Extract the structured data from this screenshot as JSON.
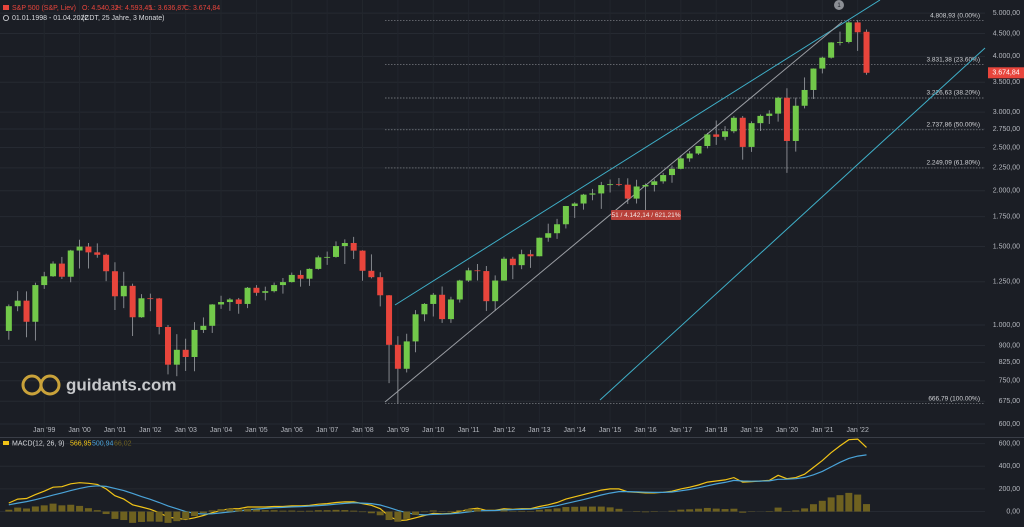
{
  "chart_data": [
    {
      "type": "candlestick",
      "title": "S&P 500 (S&P, Liev)",
      "ohlc_labels": [
        "O: 4.540,32",
        "H: 4.593,45",
        "L: 3.636,87",
        "C: 3.674,84"
      ],
      "subtitle": "01.01.1998 - 01.04.2022",
      "period_note": "(CDT, 25 Jahre, 3 Monate)",
      "watermark": "guidants.com",
      "marker": "1",
      "annotation": "51 / 4.142,14 / 621,21%",
      "up_color": "#72c94a",
      "down_color": "#e8453c",
      "log_scale": true,
      "grid": true,
      "xlim": [
        -1,
        110.4
      ],
      "ylim": [
        567,
        5350
      ],
      "xticks": [
        {
          "value": 4,
          "label": "Jan '99"
        },
        {
          "value": 8,
          "label": "Jan '00"
        },
        {
          "value": 12,
          "label": "Jan '01"
        },
        {
          "value": 16,
          "label": "Jan '02"
        },
        {
          "value": 20,
          "label": "Jan '03"
        },
        {
          "value": 24,
          "label": "Jan '04"
        },
        {
          "value": 28,
          "label": "Jan '05"
        },
        {
          "value": 32,
          "label": "Jan '06"
        },
        {
          "value": 36,
          "label": "Jan '07"
        },
        {
          "value": 40,
          "label": "Jan '08"
        },
        {
          "value": 44,
          "label": "Jan '09"
        },
        {
          "value": 48,
          "label": "Jan '10"
        },
        {
          "value": 52,
          "label": "Jan '11"
        },
        {
          "value": 56,
          "label": "Jan '12"
        },
        {
          "value": 60,
          "label": "Jan '13"
        },
        {
          "value": 64,
          "label": "Jan '14"
        },
        {
          "value": 68,
          "label": "Jan '15"
        },
        {
          "value": 72,
          "label": "Jan '16"
        },
        {
          "value": 76,
          "label": "Jan '17"
        },
        {
          "value": 80,
          "label": "Jan '18"
        },
        {
          "value": 84,
          "label": "Jan '19"
        },
        {
          "value": 88,
          "label": "Jan '20"
        },
        {
          "value": 92,
          "label": "Jan '21"
        },
        {
          "value": 96,
          "label": "Jan '22"
        }
      ],
      "yticks": [
        {
          "value": 5000,
          "label": "5.000,00"
        },
        {
          "value": 4500,
          "label": "4.500,00"
        },
        {
          "value": 4000,
          "label": "4.000,00"
        },
        {
          "value": 3500,
          "label": "3.500,00"
        },
        {
          "value": 3000,
          "label": "3.000,00"
        },
        {
          "value": 2750,
          "label": "2.750,00"
        },
        {
          "value": 2500,
          "label": "2.500,00"
        },
        {
          "value": 2250,
          "label": "2.250,00"
        },
        {
          "value": 2000,
          "label": "2.000,00"
        },
        {
          "value": 1750,
          "label": "1.750,00"
        },
        {
          "value": 1500,
          "label": "1.500,00"
        },
        {
          "value": 1250,
          "label": "1.250,00"
        },
        {
          "value": 1000,
          "label": "1.000,00"
        },
        {
          "value": 900,
          "label": "900,00"
        },
        {
          "value": 825,
          "label": "825,00"
        },
        {
          "value": 750,
          "label": "750,00"
        },
        {
          "value": 675,
          "label": "675,00"
        },
        {
          "value": 600,
          "label": "600,00"
        }
      ],
      "fib_levels": [
        {
          "value": 4808.93,
          "label": "4.808,93 (0.00%)"
        },
        {
          "value": 3831.38,
          "label": "3.831,38 (23.60%)"
        },
        {
          "value": 3226.63,
          "label": "3.226,63 (38.20%)"
        },
        {
          "value": 2737.86,
          "label": "2.737,86 (50.00%)"
        },
        {
          "value": 2249.09,
          "label": "2.249,09 (61.80%)"
        },
        {
          "value": 666.79,
          "label": "666,79 (100.00%)"
        }
      ],
      "last_price": {
        "value": 3674.84,
        "label": "3.674,84"
      },
      "open": [
        970,
        1102,
        1134,
        1017,
        1229,
        1286,
        1373,
        1283,
        1469,
        1499,
        1455,
        1437,
        1320,
        1160,
        1224,
        1041,
        1148,
        1147,
        990,
        815,
        880,
        848,
        975,
        996,
        1112,
        1126,
        1141,
        1115,
        1212,
        1181,
        1191,
        1229,
        1248,
        1295,
        1270,
        1336,
        1418,
        1421,
        1503,
        1527,
        1468,
        1323,
        1280,
        1166,
        903,
        798,
        919,
        1057,
        1115,
        1169,
        1031,
        1141,
        1258,
        1326,
        1321,
        1131,
        1258,
        1408,
        1362,
        1441,
        1426,
        1569,
        1606,
        1682,
        1848,
        1872,
        1960,
        1972,
        2059,
        2068,
        2063,
        1920,
        2044,
        2060,
        2099,
        2168,
        2239,
        2363,
        2423,
        2519,
        2674,
        2641,
        2718,
        2914,
        2507,
        2834,
        2942,
        2977,
        3231,
        2585,
        3100,
        3363,
        3756,
        3973,
        4298,
        4308,
        4766,
        4540.32
      ],
      "high": [
        1112,
        1191,
        1190,
        1244,
        1316,
        1389,
        1421,
        1474,
        1553,
        1527,
        1524,
        1445,
        1383,
        1316,
        1238,
        1173,
        1176,
        1150,
        1000,
        954,
        932,
        1015,
        1040,
        1114,
        1163,
        1150,
        1150,
        1217,
        1229,
        1219,
        1245,
        1275,
        1311,
        1326,
        1340,
        1431,
        1461,
        1540,
        1556,
        1576,
        1471,
        1440,
        1313,
        1167,
        944,
        956,
        1080,
        1120,
        1180,
        1220,
        1157,
        1263,
        1344,
        1370,
        1356,
        1292,
        1422,
        1422,
        1475,
        1474,
        1570,
        1687,
        1729,
        1849,
        1884,
        1968,
        2019,
        2093,
        2119,
        2135,
        2132,
        2116,
        2075,
        2120,
        2193,
        2277,
        2401,
        2454,
        2519,
        2695,
        2873,
        2791,
        2941,
        2940,
        2860,
        2964,
        3028,
        3247,
        3393,
        3233,
        3588,
        3760,
        3994,
        4303,
        4545,
        4808,
        4819,
        4593.45
      ],
      "low": [
        927,
        1074,
        939,
        923,
        1205,
        1282,
        1268,
        1247,
        1339,
        1339,
        1415,
        1254,
        1081,
        1091,
        945,
        1038,
        1074,
        953,
        775,
        768,
        789,
        788,
        960,
        960,
        1087,
        1076,
        1060,
        1091,
        1163,
        1136,
        1183,
        1176,
        1245,
        1219,
        1224,
        1331,
        1364,
        1416,
        1370,
        1406,
        1257,
        1272,
        1101,
        741,
        667,
        783,
        869,
        1020,
        1045,
        1011,
        1011,
        1123,
        1249,
        1258,
        1075,
        1075,
        1257,
        1267,
        1334,
        1343,
        1426,
        1537,
        1560,
        1646,
        1738,
        1814,
        1904,
        1821,
        1981,
        2048,
        1867,
        1872,
        1810,
        1992,
        2074,
        2084,
        2233,
        2322,
        2406,
        2488,
        2533,
        2594,
        2691,
        2347,
        2444,
        2722,
        2822,
        2856,
        2192,
        2447,
        3058,
        3209,
        3663,
        3954,
        4233,
        4278,
        4114,
        3636.87
      ],
      "close": [
        1102,
        1134,
        1017,
        1229,
        1286,
        1373,
        1283,
        1469,
        1499,
        1455,
        1437,
        1320,
        1160,
        1224,
        1041,
        1148,
        1147,
        990,
        815,
        880,
        848,
        975,
        996,
        1112,
        1126,
        1141,
        1115,
        1212,
        1181,
        1191,
        1229,
        1248,
        1295,
        1270,
        1336,
        1418,
        1421,
        1503,
        1527,
        1468,
        1323,
        1280,
        1166,
        903,
        798,
        919,
        1057,
        1115,
        1169,
        1031,
        1141,
        1258,
        1326,
        1321,
        1131,
        1258,
        1408,
        1362,
        1441,
        1426,
        1569,
        1606,
        1682,
        1848,
        1872,
        1960,
        1972,
        2059,
        2068,
        2063,
        1920,
        2044,
        2060,
        2099,
        2168,
        2239,
        2363,
        2423,
        2519,
        2674,
        2641,
        2718,
        2914,
        2507,
        2834,
        2942,
        2977,
        3231,
        2585,
        3100,
        3363,
        3756,
        3973,
        4298,
        4308,
        4766,
        4530,
        3674.84
      ]
    },
    {
      "type": "macd",
      "title": "MACD(12, 26, 9)",
      "xlim": [
        -1,
        110.4
      ],
      "ylim": [
        -110,
        650
      ],
      "yticks": [
        {
          "value": 600,
          "label": "600,00"
        },
        {
          "value": 400,
          "label": "400,00"
        },
        {
          "value": 200,
          "label": "200,00"
        },
        {
          "value": 0,
          "label": "0,00"
        }
      ],
      "series": [
        {
          "style": "line",
          "color": "#f2c417",
          "last_label": "566,95",
          "values": [
            76,
            110,
            115,
            150,
            180,
            215,
            220,
            245,
            255,
            250,
            240,
            200,
            140,
            110,
            60,
            40,
            20,
            -10,
            -50,
            -60,
            -70,
            -55,
            -35,
            -10,
            10,
            25,
            25,
            40,
            40,
            40,
            45,
            45,
            50,
            50,
            55,
            65,
            70,
            80,
            85,
            85,
            70,
            55,
            25,
            -40,
            -80,
            -75,
            -55,
            -35,
            -15,
            -20,
            -15,
            0,
            20,
            30,
            10,
            10,
            25,
            20,
            25,
            25,
            45,
            60,
            80,
            110,
            130,
            150,
            170,
            190,
            200,
            200,
            175,
            170,
            165,
            165,
            170,
            180,
            200,
            215,
            235,
            260,
            270,
            280,
            300,
            260,
            265,
            270,
            275,
            320,
            290,
            300,
            330,
            390,
            450,
            520,
            580,
            635,
            640,
            566.95
          ]
        },
        {
          "style": "line",
          "color": "#4aa3d8",
          "last_label": "500,94",
          "values": [
            60,
            75,
            88,
            105,
            125,
            145,
            165,
            185,
            205,
            220,
            228,
            222,
            205,
            185,
            160,
            132,
            108,
            80,
            50,
            25,
            0,
            -15,
            -22,
            -20,
            -12,
            -3,
            5,
            15,
            22,
            28,
            33,
            37,
            41,
            44,
            48,
            53,
            58,
            65,
            72,
            77,
            75,
            70,
            58,
            35,
            10,
            -10,
            -25,
            -30,
            -25,
            -23,
            -20,
            -13,
            -3,
            7,
            8,
            9,
            14,
            16,
            19,
            21,
            29,
            39,
            52,
            70,
            88,
            106,
            126,
            146,
            163,
            176,
            176,
            174,
            171,
            169,
            169,
            173,
            183,
            195,
            210,
            228,
            244,
            258,
            275,
            270,
            268,
            269,
            271,
            285,
            286,
            290,
            302,
            325,
            355,
            395,
            435,
            470,
            490,
            500.94
          ]
        },
        {
          "style": "bar",
          "color": "#6e6120",
          "last_label": "66,02",
          "values": [
            16,
            35,
            27,
            45,
            55,
            70,
            55,
            60,
            50,
            30,
            12,
            -22,
            -65,
            -75,
            -100,
            -92,
            -88,
            -90,
            -100,
            -85,
            -70,
            -40,
            -13,
            10,
            22,
            28,
            20,
            25,
            18,
            12,
            12,
            8,
            9,
            6,
            7,
            12,
            12,
            15,
            13,
            8,
            -5,
            -15,
            -33,
            -75,
            -90,
            -65,
            -30,
            -5,
            10,
            3,
            5,
            13,
            23,
            23,
            2,
            1,
            11,
            4,
            6,
            4,
            16,
            21,
            28,
            40,
            42,
            44,
            44,
            44,
            37,
            24,
            -1,
            -4,
            -6,
            -4,
            1,
            7,
            17,
            20,
            25,
            32,
            26,
            22,
            25,
            -10,
            -3,
            1,
            4,
            35,
            4,
            10,
            28,
            65,
            95,
            125,
            145,
            165,
            150,
            66.02
          ]
        }
      ]
    }
  ]
}
